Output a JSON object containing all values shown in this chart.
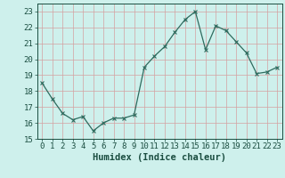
{
  "x": [
    0,
    1,
    2,
    3,
    4,
    5,
    6,
    7,
    8,
    9,
    10,
    11,
    12,
    13,
    14,
    15,
    16,
    17,
    18,
    19,
    20,
    21,
    22,
    23
  ],
  "y": [
    18.5,
    17.5,
    16.6,
    16.2,
    16.4,
    15.5,
    16.0,
    16.3,
    16.3,
    16.5,
    19.5,
    20.2,
    20.8,
    21.7,
    22.5,
    23.0,
    20.6,
    22.1,
    21.8,
    21.1,
    20.4,
    19.1,
    19.2,
    19.5
  ],
  "line_color": "#2e6b5e",
  "marker": "x",
  "marker_size": 3,
  "bg_color": "#cef0ec",
  "grid_color_v": "#d4a0a0",
  "grid_color_h": "#d4a0a0",
  "xlabel": "Humidex (Indice chaleur)",
  "xlim": [
    -0.5,
    23.5
  ],
  "ylim": [
    15,
    23.5
  ],
  "yticks": [
    15,
    16,
    17,
    18,
    19,
    20,
    21,
    22,
    23
  ],
  "font_color": "#1a4d40",
  "tick_fontsize": 6.5,
  "label_fontsize": 7.5
}
